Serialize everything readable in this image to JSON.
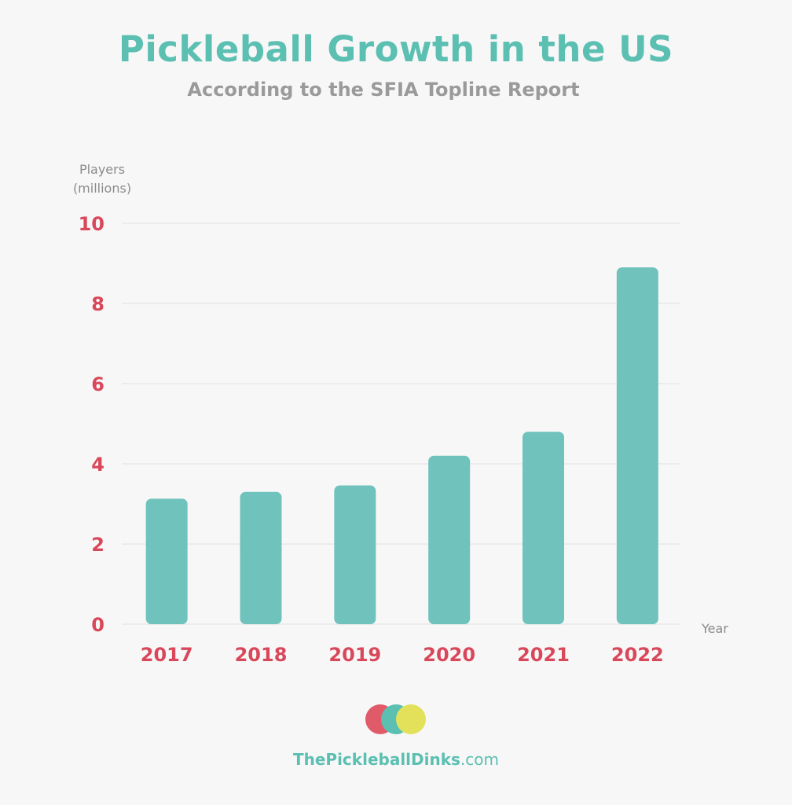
{
  "chart_data": {
    "type": "bar",
    "title": "Pickleball Growth in the US",
    "subtitle": "According to the SFIA Topline Report",
    "ylabel": "Players (millions)",
    "ylabel_lines": [
      "Players",
      "(millions)"
    ],
    "xlabel": "Year",
    "categories": [
      "2017",
      "2018",
      "2019",
      "2020",
      "2021",
      "2022"
    ],
    "values": [
      3.13,
      3.3,
      3.46,
      4.2,
      4.8,
      8.9
    ],
    "ylim": [
      0,
      10
    ],
    "yticks": [
      "0",
      "2",
      "4",
      "6",
      "8",
      "10"
    ],
    "grid": true,
    "colors": {
      "bar": "#6fc3bc",
      "title": "#5bbfb2",
      "tick": "#d9475a",
      "grid": "#ececec"
    }
  },
  "footer": {
    "site_bold": "ThePickleballDinks",
    "site_suffix": ".com",
    "logo_colors": [
      "#e05a6a",
      "#5bbfb2",
      "#e3e15a"
    ]
  }
}
